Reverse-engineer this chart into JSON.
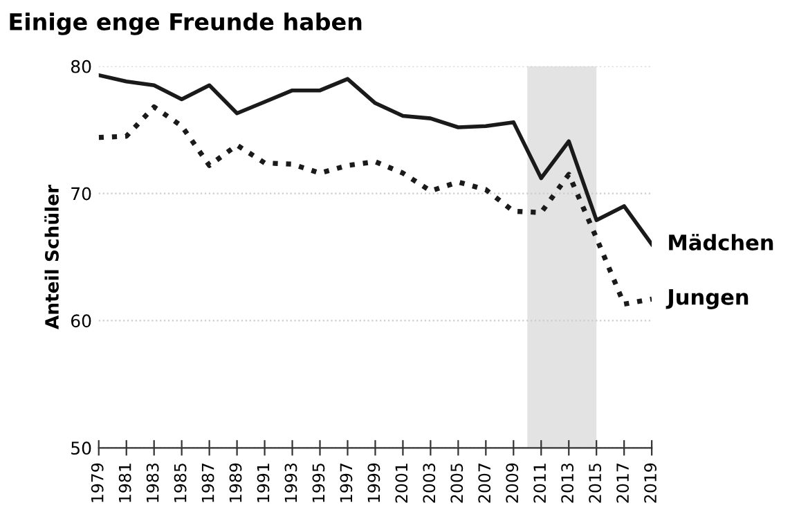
{
  "chart_data": {
    "type": "line",
    "title": "Einige enge Freunde haben",
    "ylabel": "Anteil Schüler",
    "x": [
      1979,
      1981,
      1983,
      1985,
      1987,
      1989,
      1991,
      1993,
      1995,
      1997,
      1999,
      2001,
      2003,
      2005,
      2007,
      2009,
      2011,
      2013,
      2015,
      2017,
      2019
    ],
    "series": [
      {
        "name": "Mädchen",
        "color": "#1a1a1a",
        "line_style": "solid",
        "values": [
          79.3,
          78.8,
          78.5,
          77.4,
          78.5,
          76.3,
          77.2,
          78.1,
          78.1,
          79.0,
          77.1,
          76.1,
          75.9,
          75.2,
          75.3,
          75.6,
          71.2,
          74.1,
          67.9,
          69.0,
          66.0
        ]
      },
      {
        "name": "Jungen",
        "color": "#1a1a1a",
        "line_style": "dotted",
        "values": [
          74.4,
          74.5,
          76.8,
          75.3,
          72.2,
          73.8,
          72.4,
          72.3,
          71.6,
          72.2,
          72.5,
          71.6,
          70.2,
          70.9,
          70.3,
          68.6,
          68.5,
          71.5,
          66.5,
          61.3,
          61.7
        ]
      }
    ],
    "xlim": [
      1979,
      2019
    ],
    "xticks": [
      1979,
      1981,
      1983,
      1985,
      1987,
      1989,
      1991,
      1993,
      1995,
      1997,
      1999,
      2001,
      2003,
      2005,
      2007,
      2009,
      2011,
      2013,
      2015,
      2017,
      2019
    ],
    "ylim": [
      50,
      80
    ],
    "yticks": [
      50,
      60,
      70,
      80
    ],
    "grid": "y",
    "bands": [
      {
        "axis": "x",
        "from": 2010,
        "to": 2015,
        "color": "#e3e3e3"
      }
    ]
  }
}
